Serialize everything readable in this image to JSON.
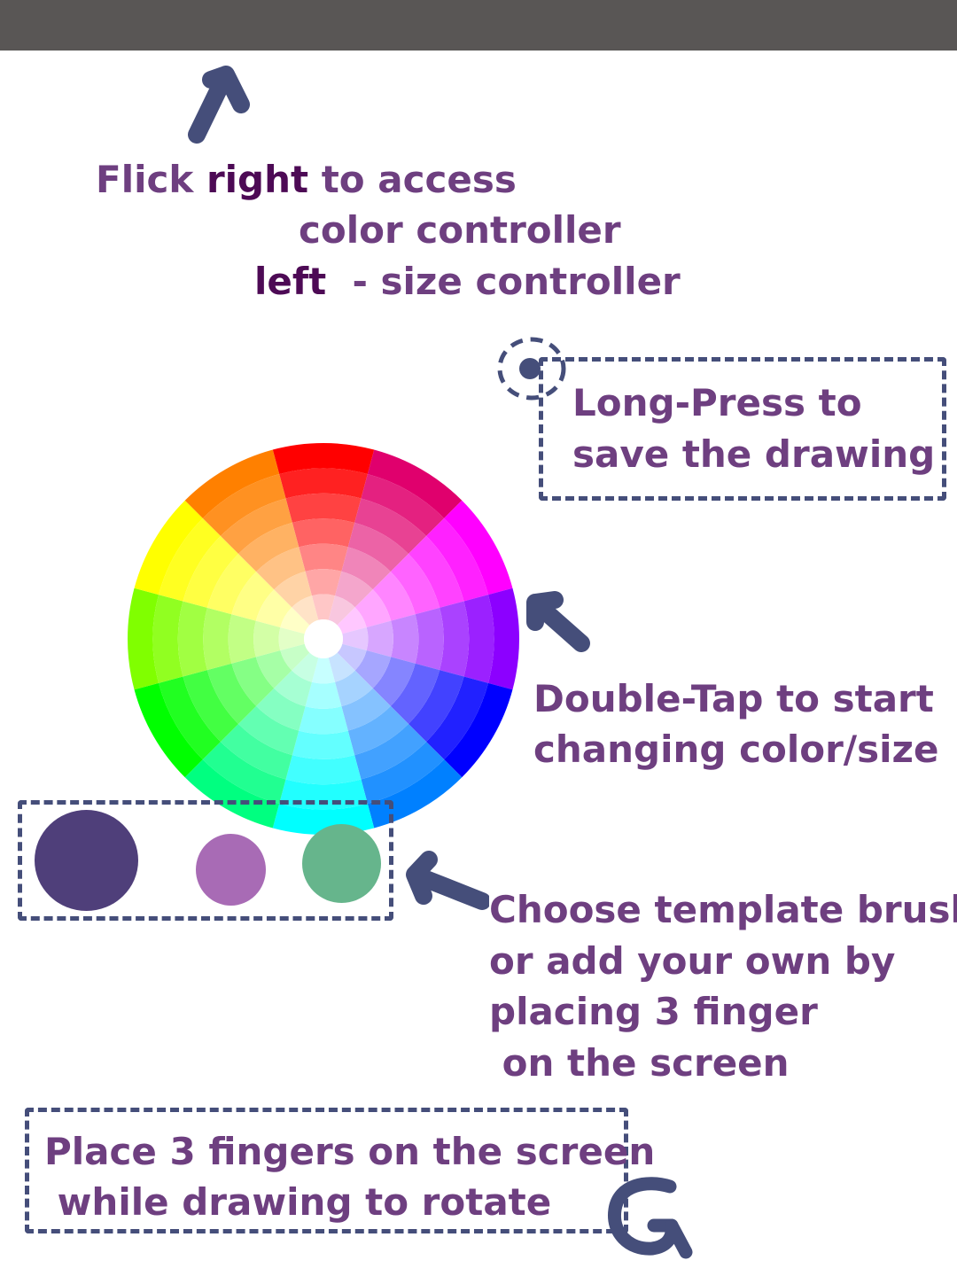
{
  "status_bar": {},
  "hints": {
    "flick": {
      "line1_a": "Flick ",
      "line1_b": "right",
      "line1_c": " to access",
      "line2": "color controller",
      "line3_a": "left",
      "line3_b": "  - size controller"
    },
    "long_press": {
      "line1": "Long-Press to",
      "line2": "save the drawing"
    },
    "double_tap": {
      "line1": "Double-Tap to start",
      "line2": "changing color/size"
    },
    "brush": {
      "line1": "Choose template brush",
      "line2": "or add your own by",
      "line3": "placing 3 finger",
      "line4": " on the screen"
    },
    "rotate": {
      "line1": "Place 3 fingers on the screen",
      "line2": " while drawing to rotate"
    }
  },
  "brushes": [
    {
      "name": "brush-dark-purple",
      "color": "#4f3f7a"
    },
    {
      "name": "brush-light-purple",
      "color": "#a86bb5"
    },
    {
      "name": "brush-green",
      "color": "#66b58c"
    }
  ],
  "colors": {
    "text": "#6e3f80",
    "emphasis": "#4d0a55",
    "gesture": "#454e7a",
    "status_bar": "#595655"
  },
  "color_wheel": {
    "hues": [
      "#ff0000",
      "#e0006d",
      "#ff00ff",
      "#8c00ff",
      "#0000ff",
      "#0080ff",
      "#00ffff",
      "#00ff80",
      "#00ff00",
      "#80ff00",
      "#ffff00",
      "#ff8000"
    ]
  }
}
